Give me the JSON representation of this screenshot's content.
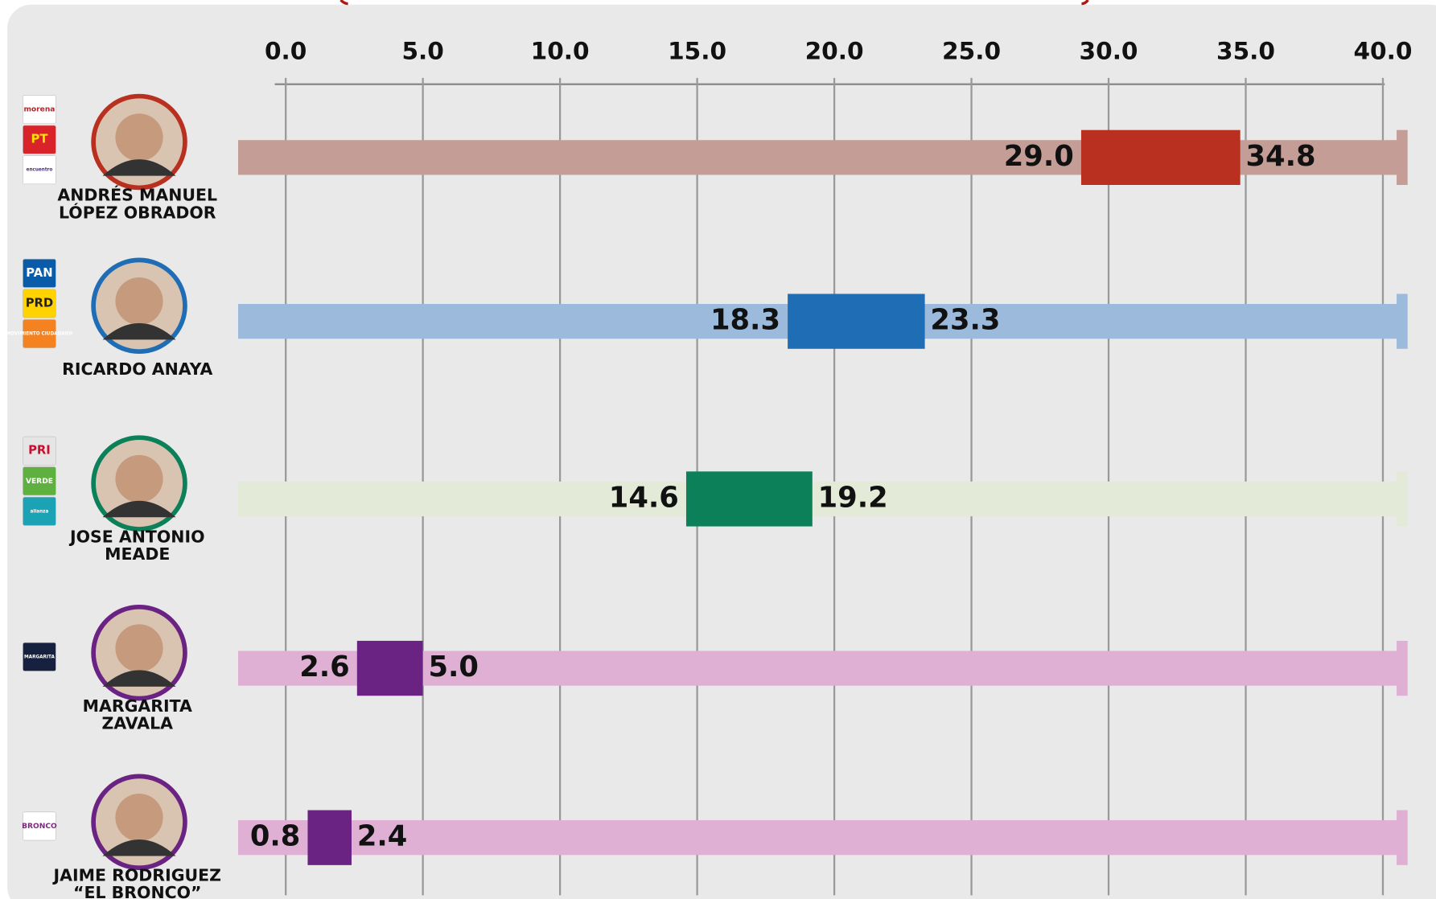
{
  "chart_data": {
    "type": "range",
    "categories": [
      [
        "ANDRÉS MANUEL",
        "LÓPEZ OBRADOR"
      ],
      [
        "RICARDO ANAYA"
      ],
      [
        "JOSE ANTONIO",
        "MEADE"
      ],
      [
        "MARGARITA",
        "ZAVALA"
      ],
      [
        "JAIME RODRIGUEZ",
        "“EL BRONCO”"
      ]
    ],
    "low": [
      29.0,
      18.3,
      14.6,
      2.6,
      0.8
    ],
    "low_labels": [
      "29.0",
      "18.3",
      "14.6",
      "2.6",
      "0.8"
    ],
    "high": [
      34.8,
      23.3,
      19.2,
      5.0,
      2.4
    ],
    "high_labels": [
      "34.8",
      "23.3",
      "19.2",
      "5.0",
      "2.4"
    ],
    "colors": [
      "#b93020",
      "#1f6db5",
      "#0b8059",
      "#6a2382",
      "#6a2382"
    ],
    "track_colors": [
      "#c59d97",
      "#9bbadc",
      "#e4ead8",
      "#dfb0d3",
      "#dfb0d3"
    ],
    "parties": [
      [
        {
          "label": "morena",
          "fill": "#ffffff",
          "text": "#b0272d"
        },
        {
          "label": "PT",
          "fill": "#d8232a",
          "text": "#ffe100"
        },
        {
          "label": "encuentro",
          "fill": "#ffffff",
          "text": "#4b2a84"
        }
      ],
      [
        {
          "label": "PAN",
          "fill": "#0a5ca8",
          "text": "#ffffff"
        },
        {
          "label": "PRD",
          "fill": "#ffd200",
          "text": "#222222"
        },
        {
          "label": "MOVIMIENTO CIUDADANO",
          "fill": "#f58220",
          "text": "#ffffff"
        }
      ],
      [
        {
          "label": "PRI",
          "fill": "#e5e5e5",
          "text": "#c8102e"
        },
        {
          "label": "VERDE",
          "fill": "#5fb13f",
          "text": "#ffffff"
        },
        {
          "label": "alianza",
          "fill": "#1ba3b5",
          "text": "#ffffff"
        }
      ],
      [
        {
          "label": "MARGARITA",
          "fill": "#16213f",
          "text": "#ffffff"
        }
      ],
      [
        {
          "label": "BRONCO",
          "fill": "#ffffff",
          "text": "#7a2a7c"
        }
      ]
    ],
    "xlim": [
      0,
      40
    ],
    "xticks": [
      {
        "value": 0,
        "label": "0.0"
      },
      {
        "value": 5,
        "label": "5.0"
      },
      {
        "value": 10,
        "label": "10.0"
      },
      {
        "value": 15,
        "label": "15.0"
      },
      {
        "value": 20,
        "label": "20.0"
      },
      {
        "value": 25,
        "label": "25.0"
      },
      {
        "value": 30,
        "label": "30.0"
      },
      {
        "value": 35,
        "label": "35.0"
      },
      {
        "value": 40,
        "label": "40.0"
      }
    ],
    "grid": true
  }
}
